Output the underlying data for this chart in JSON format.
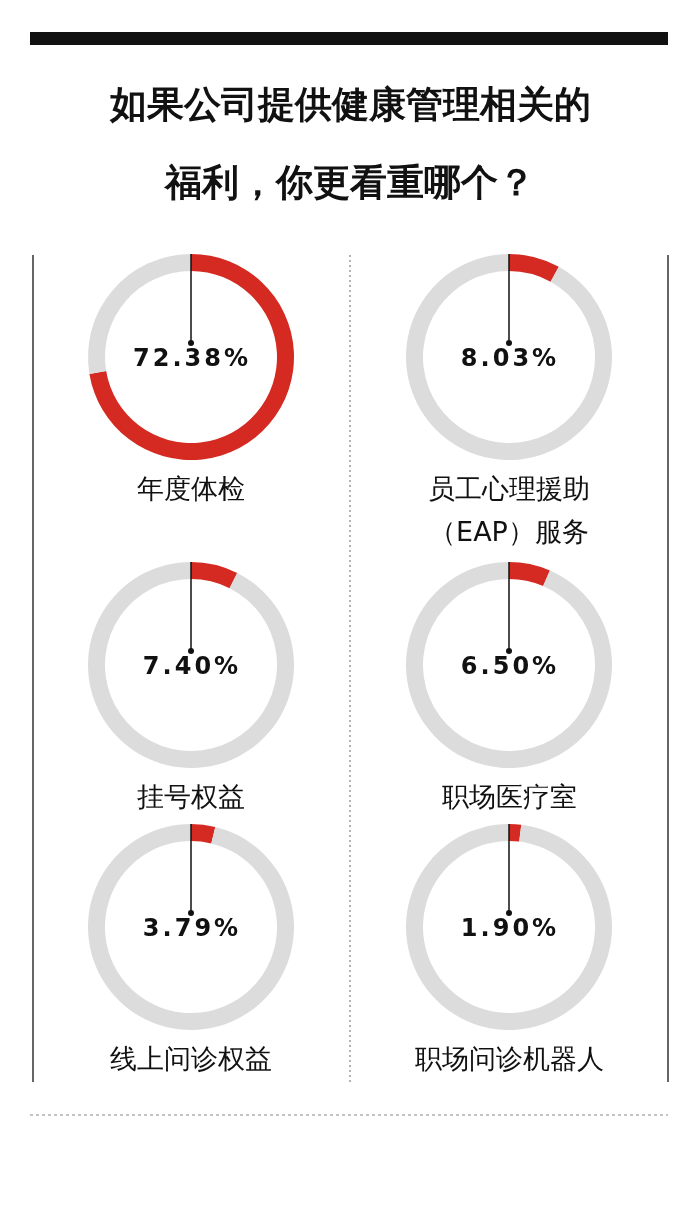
{
  "chart_data": [
    {
      "type": "other",
      "title": "如果公司提供健康管理相关的福利，你更看重哪个？"
    },
    {
      "type": "donut",
      "title": "年度体检",
      "categories": [
        null,
        null
      ],
      "values": [
        72.38,
        27.62
      ],
      "colors": [
        "#d42a22",
        "#dcdcdc"
      ],
      "annotations": [
        "72.38%"
      ]
    },
    {
      "type": "donut",
      "title": "员工心理援助（EAP）服务",
      "categories": [
        null,
        null
      ],
      "values": [
        8.03,
        91.97
      ],
      "colors": [
        "#d42a22",
        "#dcdcdc"
      ],
      "annotations": [
        "8.03%"
      ]
    },
    {
      "type": "donut",
      "title": "挂号权益",
      "categories": [
        null,
        null
      ],
      "values": [
        7.4,
        92.6
      ],
      "colors": [
        "#d42a22",
        "#dcdcdc"
      ],
      "annotations": [
        "7.40%"
      ]
    },
    {
      "type": "donut",
      "title": "职场医疗室",
      "categories": [
        null,
        null
      ],
      "values": [
        6.5,
        93.5
      ],
      "colors": [
        "#d42a22",
        "#dcdcdc"
      ],
      "annotations": [
        "6.50%"
      ]
    },
    {
      "type": "donut",
      "title": "线上问诊权益",
      "categories": [
        null,
        null
      ],
      "values": [
        3.79,
        96.21
      ],
      "colors": [
        "#d42a22",
        "#dcdcdc"
      ],
      "annotations": [
        "3.79%"
      ]
    },
    {
      "type": "donut",
      "title": "职场问诊机器人",
      "categories": [
        null,
        null
      ],
      "values": [
        1.9,
        98.1
      ],
      "colors": [
        "#d42a22",
        "#dcdcdc"
      ],
      "annotations": [
        "1.90%"
      ]
    }
  ]
}
